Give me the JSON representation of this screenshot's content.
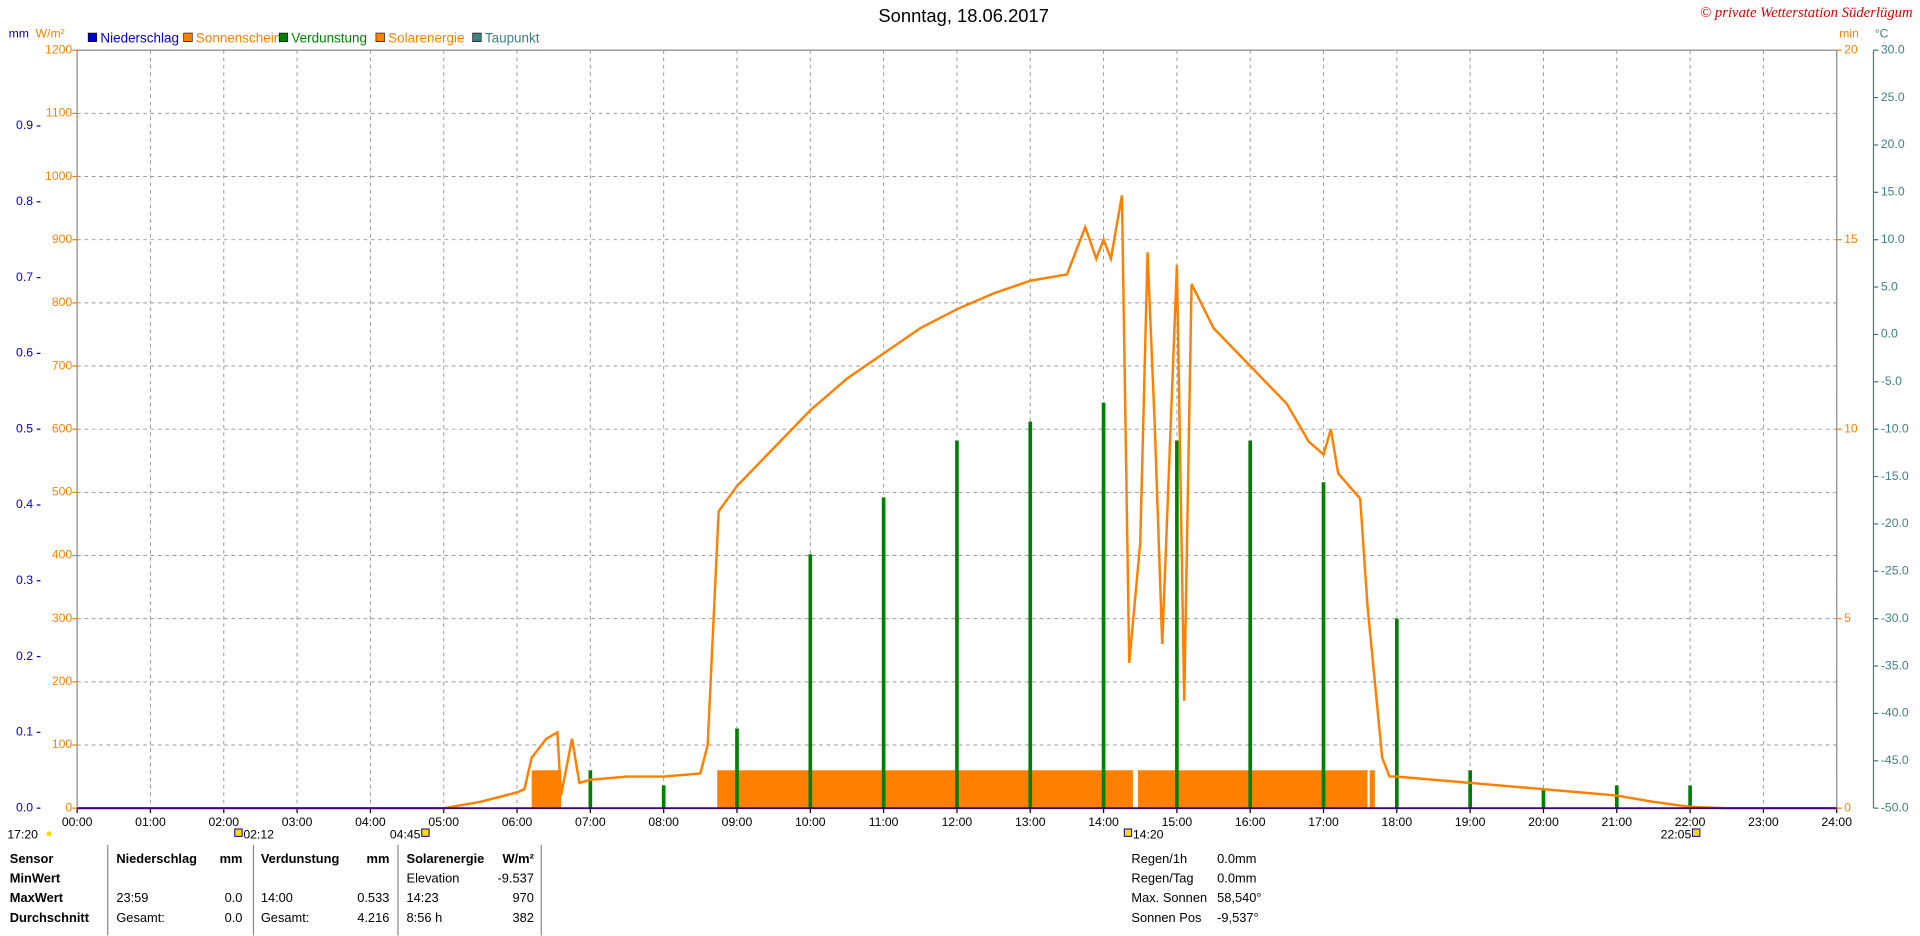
{
  "chart_data": {
    "type": "line",
    "title": "Sonntag, 18.06.2017",
    "annotation": "© private Wetterstation Süderlügum",
    "ylabel": "mm",
    "y2label": "W/m²",
    "y3label": "min",
    "y4label": "°C",
    "xlim": [
      0,
      24
    ],
    "xticks": [
      {
        "value": 0,
        "label": "00:00"
      },
      {
        "value": 1,
        "label": "01:00"
      },
      {
        "value": 2,
        "label": "02:00"
      },
      {
        "value": 3,
        "label": "03:00"
      },
      {
        "value": 4,
        "label": "04:00"
      },
      {
        "value": 5,
        "label": "05:00"
      },
      {
        "value": 6,
        "label": "06:00"
      },
      {
        "value": 7,
        "label": "07:00"
      },
      {
        "value": 8,
        "label": "08:00"
      },
      {
        "value": 9,
        "label": "09:00"
      },
      {
        "value": 10,
        "label": "10:00"
      },
      {
        "value": 11,
        "label": "11:00"
      },
      {
        "value": 12,
        "label": "12:00"
      },
      {
        "value": 13,
        "label": "13:00"
      },
      {
        "value": 14,
        "label": "14:00"
      },
      {
        "value": 15,
        "label": "15:00"
      },
      {
        "value": 16,
        "label": "16:00"
      },
      {
        "value": 17,
        "label": "17:00"
      },
      {
        "value": 18,
        "label": "18:00"
      },
      {
        "value": 19,
        "label": "19:00"
      },
      {
        "value": 20,
        "label": "20:00"
      },
      {
        "value": 21,
        "label": "21:00"
      },
      {
        "value": 22,
        "label": "22:00"
      },
      {
        "value": 23,
        "label": "23:00"
      },
      {
        "value": 24,
        "label": "24:00"
      }
    ],
    "ylim": [
      0,
      1
    ],
    "yticks": [
      {
        "value": 0,
        "label": "0.0"
      },
      {
        "value": 0.1,
        "label": "0.1"
      },
      {
        "value": 0.2,
        "label": "0.2"
      },
      {
        "value": 0.3,
        "label": "0.3"
      },
      {
        "value": 0.4,
        "label": "0.4"
      },
      {
        "value": 0.5,
        "label": "0.5"
      },
      {
        "value": 0.6,
        "label": "0.6"
      },
      {
        "value": 0.7,
        "label": "0.7"
      },
      {
        "value": 0.8,
        "label": "0.8"
      },
      {
        "value": 0.9,
        "label": "0.9"
      }
    ],
    "y2lim": [
      0,
      1200
    ],
    "y2ticks": [
      0,
      100,
      200,
      300,
      400,
      500,
      600,
      700,
      800,
      900,
      1000,
      1100,
      1200
    ],
    "y3lim": [
      0,
      20
    ],
    "y3ticks": [
      0,
      5,
      10,
      15,
      20
    ],
    "y4lim": [
      -50,
      30
    ],
    "y4ticks": [
      {
        "value": 30,
        "label": "30.0"
      },
      {
        "value": 25,
        "label": "25.0"
      },
      {
        "value": 20,
        "label": "20.0"
      },
      {
        "value": 15,
        "label": "15.0"
      },
      {
        "value": 10,
        "label": "10.0"
      },
      {
        "value": 5,
        "label": "5.0"
      },
      {
        "value": 0,
        "label": "0.0"
      },
      {
        "value": -5,
        "label": "-5.0"
      },
      {
        "value": -10,
        "label": "-10.0"
      },
      {
        "value": -15,
        "label": "-15.0"
      },
      {
        "value": -20,
        "label": "-20.0"
      },
      {
        "value": -25,
        "label": "-25.0"
      },
      {
        "value": -30,
        "label": "-30.0"
      },
      {
        "value": -35,
        "label": "-35.0"
      },
      {
        "value": -40,
        "label": "-40.0"
      },
      {
        "value": -45,
        "label": "-45.0"
      },
      {
        "value": -50,
        "label": "-50.0"
      }
    ],
    "grid": true,
    "series": [
      {
        "name": "Niederschlag",
        "color": "#0000cc",
        "kind": "bar",
        "axis": "y",
        "x": [],
        "values": []
      },
      {
        "name": "Sonnenschein",
        "color": "#ff8000",
        "kind": "interval",
        "axis": "y3",
        "x_start": [
          6.2,
          8.73,
          14.47,
          17.63
        ],
        "x_end": [
          6.6,
          14.4,
          17.6,
          17.7
        ],
        "values": [
          1,
          1,
          1,
          1
        ]
      },
      {
        "name": "Verdunstung",
        "color": "#008000",
        "kind": "bar",
        "axis": "y",
        "x": [
          7,
          8,
          9,
          10,
          11,
          12,
          13,
          14,
          15,
          16,
          17,
          18,
          19,
          20,
          21,
          22
        ],
        "values": [
          0.05,
          0.03,
          0.105,
          0.335,
          0.41,
          0.485,
          0.51,
          0.535,
          0.485,
          0.485,
          0.43,
          0.25,
          0.05,
          0.025,
          0.03,
          0.03
        ]
      },
      {
        "name": "Solarenergie",
        "color": "#ff8000",
        "kind": "line",
        "axis": "y2",
        "x": [
          0,
          5,
          5.5,
          6,
          6.1,
          6.2,
          6.4,
          6.55,
          6.6,
          6.75,
          6.85,
          7,
          7.5,
          8,
          8.5,
          8.6,
          8.75,
          9,
          9.5,
          10,
          10.5,
          11,
          11.5,
          12,
          12.5,
          13,
          13.5,
          13.75,
          13.9,
          14,
          14.1,
          14.25,
          14.35,
          14.5,
          14.6,
          14.7,
          14.8,
          15,
          15.1,
          15.2,
          15.5,
          16,
          16.5,
          16.8,
          17,
          17.1,
          17.2,
          17.5,
          17.6,
          17.7,
          17.8,
          17.9,
          18,
          18.5,
          19,
          19.5,
          20,
          20.5,
          21,
          21.5,
          22,
          22.5,
          24
        ],
        "values": [
          0,
          0,
          10,
          25,
          30,
          80,
          110,
          120,
          20,
          110,
          40,
          45,
          50,
          50,
          55,
          100,
          470,
          510,
          570,
          630,
          680,
          720,
          760,
          790,
          815,
          835,
          845,
          920,
          870,
          900,
          870,
          970,
          230,
          420,
          880,
          600,
          260,
          860,
          170,
          830,
          760,
          700,
          640,
          580,
          560,
          600,
          530,
          490,
          320,
          200,
          80,
          50,
          50,
          45,
          40,
          35,
          30,
          25,
          20,
          10,
          2,
          0,
          0
        ]
      },
      {
        "name": "Taupunkt",
        "color": "#408080",
        "kind": "line",
        "axis": "y4",
        "x": [],
        "values": []
      }
    ],
    "left_marker": "17:20",
    "sun_markers": {
      "x": [
        2.2,
        4.75,
        14.333,
        22.083
      ],
      "labels": [
        "02:12",
        "04:45",
        "14:20",
        "22:05"
      ]
    }
  },
  "stats": {
    "rows": [
      [
        "Sensor",
        "Niederschlag",
        "mm",
        "Verdunstung",
        "mm",
        "Solarenergie",
        "W/m²"
      ],
      [
        "MinWert",
        null,
        null,
        null,
        null,
        "Elevation",
        "-9.537"
      ],
      [
        "MaxWert",
        "23:59",
        "0.0",
        "14:00",
        "0.533",
        "14:23",
        "970"
      ],
      [
        "Durchschnitt",
        "Gesamt:",
        "0.0",
        "Gesamt:",
        "4.216",
        "8:56 h",
        "382"
      ]
    ],
    "info": [
      [
        "Regen/1h",
        "0.0mm"
      ],
      [
        "Regen/Tag",
        "0.0mm"
      ],
      [
        "Max. Sonnen",
        "58,540°"
      ],
      [
        "Sonnen Pos",
        "-9,537°"
      ]
    ]
  }
}
